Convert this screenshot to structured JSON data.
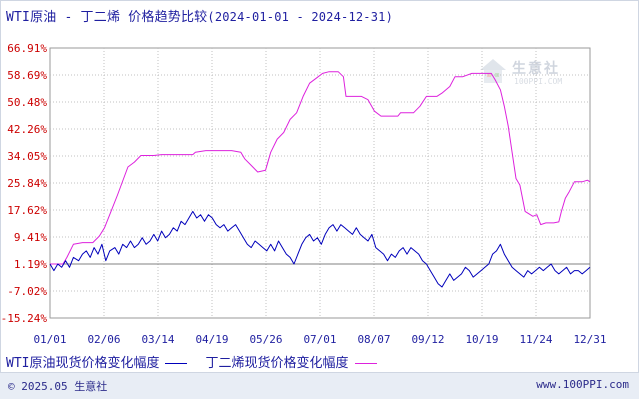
{
  "title": {
    "main": "WTI原油 - 丁二烯 价格趋势比较",
    "range": "(2024-01-01 - 2024-12-31)"
  },
  "legend": {
    "wti": "WTI原油现货价格变化幅度",
    "butadiene": "丁二烯现货价格变化幅度"
  },
  "footer": {
    "copyright": "© 2025.05 生意社",
    "site": "www.100PPI.com"
  },
  "watermark": {
    "name": "生意社",
    "url": "100PPI.COM"
  },
  "colors": {
    "wti": "#0000bb",
    "butadiene": "#dd22dd",
    "axis_text": "#cc0000",
    "x_text": "#1f1fa0",
    "grid": "#c0c0c0"
  },
  "chart_data": {
    "type": "line",
    "title": "WTI原油 - 丁二烯 价格趋势比较",
    "xlabel": "",
    "ylabel": "",
    "y_ticks": [
      "66.91%",
      "58.69%",
      "50.48%",
      "42.26%",
      "34.05%",
      "25.84%",
      "17.62%",
      "9.41%",
      "1.19%",
      "-7.02%",
      "-15.24%"
    ],
    "ylim": [
      -15.24,
      66.91
    ],
    "x_ticks": [
      "01/01",
      "02/06",
      "03/14",
      "04/19",
      "05/26",
      "07/01",
      "08/07",
      "09/12",
      "10/19",
      "11/24",
      "12/31"
    ],
    "grid": true,
    "baseline": 1.19,
    "series": [
      {
        "name": "丁二烯现货价格变化幅度",
        "color": "#dd22dd",
        "points": [
          [
            0,
            0
          ],
          [
            10,
            0
          ],
          [
            13,
            2
          ],
          [
            18,
            6
          ],
          [
            25,
            6.5
          ],
          [
            33,
            6.5
          ],
          [
            38,
            8.5
          ],
          [
            42,
            11
          ],
          [
            47,
            16
          ],
          [
            52,
            21
          ],
          [
            60,
            29.5
          ],
          [
            65,
            31
          ],
          [
            70,
            33
          ],
          [
            80,
            33
          ],
          [
            86,
            33.3
          ],
          [
            95,
            33.3
          ],
          [
            100,
            33.3
          ],
          [
            110,
            33.3
          ],
          [
            112,
            34
          ],
          [
            120,
            34.5
          ],
          [
            130,
            34.5
          ],
          [
            140,
            34.5
          ],
          [
            147,
            34
          ],
          [
            150,
            32
          ],
          [
            155,
            30
          ],
          [
            160,
            28
          ],
          [
            166,
            28.5
          ],
          [
            170,
            34
          ],
          [
            175,
            38
          ],
          [
            180,
            40
          ],
          [
            185,
            44
          ],
          [
            190,
            46
          ],
          [
            195,
            51
          ],
          [
            200,
            55
          ],
          [
            205,
            56.5
          ],
          [
            210,
            58
          ],
          [
            215,
            58.5
          ],
          [
            222,
            58.5
          ],
          [
            226,
            57
          ],
          [
            228,
            51
          ],
          [
            240,
            51
          ],
          [
            245,
            50
          ],
          [
            250,
            46.5
          ],
          [
            255,
            45
          ],
          [
            262,
            45
          ],
          [
            268,
            45
          ],
          [
            270,
            46
          ],
          [
            280,
            46
          ],
          [
            285,
            48
          ],
          [
            290,
            51
          ],
          [
            298,
            51
          ],
          [
            302,
            52
          ],
          [
            308,
            54
          ],
          [
            312,
            57
          ],
          [
            318,
            57
          ],
          [
            325,
            58
          ],
          [
            330,
            58
          ],
          [
            336,
            58
          ],
          [
            340,
            58
          ],
          [
            343,
            56
          ],
          [
            347,
            53
          ],
          [
            350,
            48
          ],
          [
            353,
            42
          ],
          [
            356,
            34
          ],
          [
            359,
            26
          ],
          [
            362,
            24
          ],
          [
            366,
            16
          ],
          [
            372,
            14.5
          ],
          [
            375,
            15
          ],
          [
            378,
            12
          ],
          [
            382,
            12.5
          ],
          [
            388,
            12.5
          ],
          [
            392,
            12.8
          ],
          [
            394,
            16
          ],
          [
            397,
            20
          ],
          [
            400,
            22
          ],
          [
            404,
            25
          ],
          [
            410,
            25
          ],
          [
            414,
            25.5
          ],
          [
            416,
            25
          ]
        ]
      },
      {
        "name": "WTI原油现货价格变化幅度",
        "color": "#0000bb",
        "points": [
          [
            0,
            0
          ],
          [
            3,
            -2
          ],
          [
            6,
            0
          ],
          [
            9,
            -1
          ],
          [
            12,
            1
          ],
          [
            15,
            -1
          ],
          [
            18,
            2
          ],
          [
            22,
            1
          ],
          [
            25,
            3
          ],
          [
            28,
            4
          ],
          [
            31,
            2
          ],
          [
            34,
            5
          ],
          [
            37,
            3
          ],
          [
            40,
            6
          ],
          [
            43,
            1
          ],
          [
            46,
            4
          ],
          [
            50,
            5
          ],
          [
            53,
            3
          ],
          [
            56,
            6
          ],
          [
            59,
            5
          ],
          [
            62,
            7
          ],
          [
            65,
            5
          ],
          [
            68,
            6
          ],
          [
            71,
            8
          ],
          [
            74,
            6
          ],
          [
            77,
            7
          ],
          [
            80,
            9
          ],
          [
            83,
            7
          ],
          [
            86,
            10
          ],
          [
            89,
            8
          ],
          [
            92,
            9
          ],
          [
            95,
            11
          ],
          [
            98,
            10
          ],
          [
            101,
            13
          ],
          [
            104,
            12
          ],
          [
            107,
            14
          ],
          [
            110,
            16
          ],
          [
            113,
            14
          ],
          [
            116,
            15
          ],
          [
            119,
            13
          ],
          [
            122,
            15
          ],
          [
            125,
            14
          ],
          [
            128,
            12
          ],
          [
            131,
            11
          ],
          [
            134,
            12
          ],
          [
            137,
            10
          ],
          [
            140,
            11
          ],
          [
            143,
            12
          ],
          [
            146,
            10
          ],
          [
            149,
            8
          ],
          [
            152,
            6
          ],
          [
            155,
            5
          ],
          [
            158,
            7
          ],
          [
            161,
            6
          ],
          [
            164,
            5
          ],
          [
            167,
            4
          ],
          [
            170,
            6
          ],
          [
            173,
            4
          ],
          [
            176,
            7
          ],
          [
            179,
            5
          ],
          [
            182,
            3
          ],
          [
            185,
            2
          ],
          [
            188,
            0
          ],
          [
            191,
            3
          ],
          [
            194,
            6
          ],
          [
            197,
            8
          ],
          [
            200,
            9
          ],
          [
            203,
            7
          ],
          [
            206,
            8
          ],
          [
            209,
            6
          ],
          [
            212,
            9
          ],
          [
            215,
            11
          ],
          [
            218,
            12
          ],
          [
            221,
            10
          ],
          [
            224,
            12
          ],
          [
            227,
            11
          ],
          [
            230,
            10
          ],
          [
            233,
            9
          ],
          [
            236,
            11
          ],
          [
            239,
            9
          ],
          [
            242,
            8
          ],
          [
            245,
            7
          ],
          [
            248,
            9
          ],
          [
            251,
            5
          ],
          [
            254,
            4
          ],
          [
            257,
            3
          ],
          [
            260,
            1
          ],
          [
            263,
            3
          ],
          [
            266,
            2
          ],
          [
            269,
            4
          ],
          [
            272,
            5
          ],
          [
            275,
            3
          ],
          [
            278,
            5
          ],
          [
            281,
            4
          ],
          [
            284,
            3
          ],
          [
            287,
            1
          ],
          [
            290,
            0
          ],
          [
            293,
            -2
          ],
          [
            296,
            -4
          ],
          [
            299,
            -6
          ],
          [
            302,
            -7
          ],
          [
            305,
            -5
          ],
          [
            308,
            -3
          ],
          [
            311,
            -5
          ],
          [
            314,
            -4
          ],
          [
            317,
            -3
          ],
          [
            320,
            -1
          ],
          [
            323,
            -2
          ],
          [
            326,
            -4
          ],
          [
            329,
            -3
          ],
          [
            332,
            -2
          ],
          [
            335,
            -1
          ],
          [
            338,
            0
          ],
          [
            341,
            3
          ],
          [
            344,
            4
          ],
          [
            347,
            6
          ],
          [
            350,
            3
          ],
          [
            353,
            1
          ],
          [
            356,
            -1
          ],
          [
            359,
            -2
          ],
          [
            362,
            -3
          ],
          [
            365,
            -4
          ],
          [
            368,
            -2
          ],
          [
            371,
            -3
          ],
          [
            374,
            -2
          ],
          [
            377,
            -1
          ],
          [
            380,
            -2
          ],
          [
            383,
            -1
          ],
          [
            386,
            0
          ],
          [
            389,
            -2
          ],
          [
            392,
            -3
          ],
          [
            395,
            -2
          ],
          [
            398,
            -1
          ],
          [
            401,
            -3
          ],
          [
            404,
            -2
          ],
          [
            407,
            -2
          ],
          [
            410,
            -3
          ],
          [
            413,
            -2
          ],
          [
            416,
            -1
          ]
        ]
      }
    ]
  }
}
